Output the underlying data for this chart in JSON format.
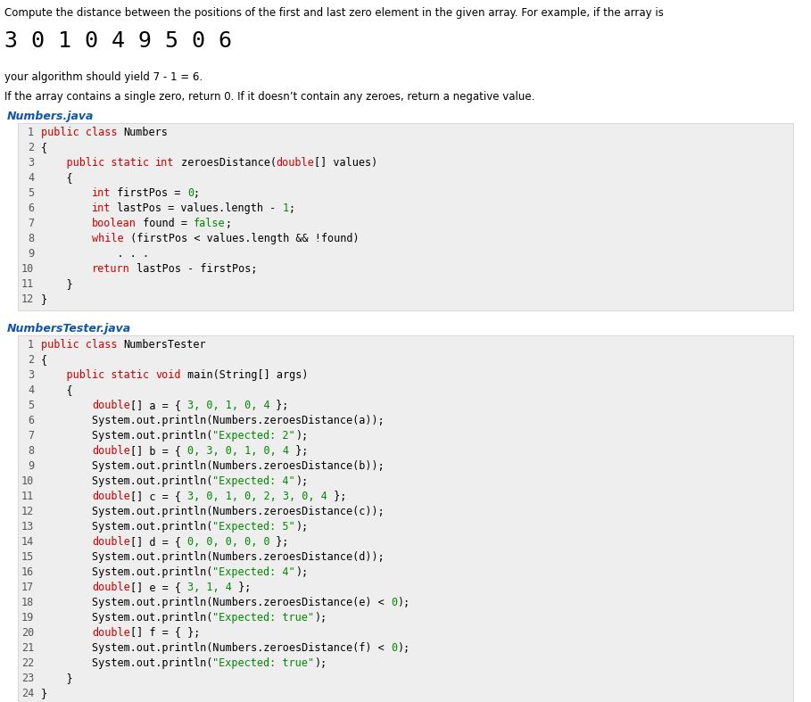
{
  "bg_color": "#ffffff",
  "intro_text": "Compute the distance between the positions of the first and last zero element in the given array. For example, if the array is",
  "array_display": "3 0 1 0 4 9 5 0 6",
  "algo_text": "your algorithm should yield 7 - 1 = 6.",
  "condition_text": "If the array contains a single zero, return 0. If it doesn’t contain any zeroes, return a negative value.",
  "file1_label": "Numbers.java",
  "file1_bg": "#eeeeee",
  "file1_label_color": "#1155aa",
  "file2_label": "NumbersTester.java",
  "file2_bg": "#eeeeee",
  "file2_label_color": "#1155aa",
  "keyword_color": "#cc0000",
  "number_color": "#008800",
  "string_color": "#008800",
  "default_color": "#000000",
  "num_color": "#555555",
  "numbers_lines": [
    {
      "num": "1",
      "tokens": [
        [
          "public class ",
          "#cc0000"
        ],
        [
          "Numbers",
          "#000000"
        ]
      ]
    },
    {
      "num": "2",
      "tokens": [
        [
          "{",
          "#000000"
        ]
      ]
    },
    {
      "num": "3",
      "tokens": [
        [
          "    public static ",
          "#cc0000"
        ],
        [
          "int",
          "#cc0000"
        ],
        [
          " zeroesDistance(",
          "#000000"
        ],
        [
          "double",
          "#cc0000"
        ],
        [
          "[] values)",
          "#000000"
        ]
      ]
    },
    {
      "num": "4",
      "tokens": [
        [
          "    {",
          "#000000"
        ]
      ]
    },
    {
      "num": "5",
      "tokens": [
        [
          "        ",
          "#000000"
        ],
        [
          "int",
          "#cc0000"
        ],
        [
          " firstPos = ",
          "#000000"
        ],
        [
          "0",
          "#008800"
        ],
        [
          ";",
          "#000000"
        ]
      ]
    },
    {
      "num": "6",
      "tokens": [
        [
          "        ",
          "#000000"
        ],
        [
          "int",
          "#cc0000"
        ],
        [
          " lastPos = values.length - ",
          "#000000"
        ],
        [
          "1",
          "#008800"
        ],
        [
          ";",
          "#000000"
        ]
      ]
    },
    {
      "num": "7",
      "tokens": [
        [
          "        ",
          "#000000"
        ],
        [
          "boolean",
          "#cc0000"
        ],
        [
          " found = ",
          "#000000"
        ],
        [
          "false",
          "#008800"
        ],
        [
          ";",
          "#000000"
        ]
      ]
    },
    {
      "num": "8",
      "tokens": [
        [
          "        ",
          "#000000"
        ],
        [
          "while",
          "#cc0000"
        ],
        [
          " (firstPos < values.length && !found)",
          "#000000"
        ]
      ]
    },
    {
      "num": "9",
      "tokens": [
        [
          "            . . .",
          "#000000"
        ]
      ]
    },
    {
      "num": "10",
      "tokens": [
        [
          "        ",
          "#000000"
        ],
        [
          "return",
          "#cc0000"
        ],
        [
          " lastPos - firstPos;",
          "#000000"
        ]
      ]
    },
    {
      "num": "11",
      "tokens": [
        [
          "    }",
          "#000000"
        ]
      ]
    },
    {
      "num": "12",
      "tokens": [
        [
          "}",
          "#000000"
        ]
      ]
    }
  ],
  "tester_lines": [
    {
      "num": "1",
      "tokens": [
        [
          "public class ",
          "#cc0000"
        ],
        [
          "NumbersTester",
          "#000000"
        ]
      ]
    },
    {
      "num": "2",
      "tokens": [
        [
          "{",
          "#000000"
        ]
      ]
    },
    {
      "num": "3",
      "tokens": [
        [
          "    public static ",
          "#cc0000"
        ],
        [
          "void",
          "#cc0000"
        ],
        [
          " main(String[] args)",
          "#000000"
        ]
      ]
    },
    {
      "num": "4",
      "tokens": [
        [
          "    {",
          "#000000"
        ]
      ]
    },
    {
      "num": "5",
      "tokens": [
        [
          "        ",
          "#000000"
        ],
        [
          "double",
          "#cc0000"
        ],
        [
          "[] a = { ",
          "#000000"
        ],
        [
          "3, 0, 1, 0, 4",
          "#008800"
        ],
        [
          " };",
          "#000000"
        ]
      ]
    },
    {
      "num": "6",
      "tokens": [
        [
          "        System.out.println(Numbers.zeroesDistance(a));",
          "#000000"
        ]
      ]
    },
    {
      "num": "7",
      "tokens": [
        [
          "        System.out.println(",
          "#000000"
        ],
        [
          "\"Expected: 2\"",
          "#008800"
        ],
        [
          ");",
          "#000000"
        ]
      ]
    },
    {
      "num": "8",
      "tokens": [
        [
          "        ",
          "#000000"
        ],
        [
          "double",
          "#cc0000"
        ],
        [
          "[] b = { ",
          "#000000"
        ],
        [
          "0, 3, 0, 1, 0, 4",
          "#008800"
        ],
        [
          " };",
          "#000000"
        ]
      ]
    },
    {
      "num": "9",
      "tokens": [
        [
          "        System.out.println(Numbers.zeroesDistance(b));",
          "#000000"
        ]
      ]
    },
    {
      "num": "10",
      "tokens": [
        [
          "        System.out.println(",
          "#000000"
        ],
        [
          "\"Expected: 4\"",
          "#008800"
        ],
        [
          ");",
          "#000000"
        ]
      ]
    },
    {
      "num": "11",
      "tokens": [
        [
          "        ",
          "#000000"
        ],
        [
          "double",
          "#cc0000"
        ],
        [
          "[] c = { ",
          "#000000"
        ],
        [
          "3, 0, 1, 0, 2, 3, 0, 4",
          "#008800"
        ],
        [
          " };",
          "#000000"
        ]
      ]
    },
    {
      "num": "12",
      "tokens": [
        [
          "        System.out.println(Numbers.zeroesDistance(c));",
          "#000000"
        ]
      ]
    },
    {
      "num": "13",
      "tokens": [
        [
          "        System.out.println(",
          "#000000"
        ],
        [
          "\"Expected: 5\"",
          "#008800"
        ],
        [
          ");",
          "#000000"
        ]
      ]
    },
    {
      "num": "14",
      "tokens": [
        [
          "        ",
          "#000000"
        ],
        [
          "double",
          "#cc0000"
        ],
        [
          "[] d = { ",
          "#000000"
        ],
        [
          "0, 0, 0, 0, 0",
          "#008800"
        ],
        [
          " };",
          "#000000"
        ]
      ]
    },
    {
      "num": "15",
      "tokens": [
        [
          "        System.out.println(Numbers.zeroesDistance(d));",
          "#000000"
        ]
      ]
    },
    {
      "num": "16",
      "tokens": [
        [
          "        System.out.println(",
          "#000000"
        ],
        [
          "\"Expected: 4\"",
          "#008800"
        ],
        [
          ");",
          "#000000"
        ]
      ]
    },
    {
      "num": "17",
      "tokens": [
        [
          "        ",
          "#000000"
        ],
        [
          "double",
          "#cc0000"
        ],
        [
          "[] e = { ",
          "#000000"
        ],
        [
          "3, 1, 4",
          "#008800"
        ],
        [
          " };",
          "#000000"
        ]
      ]
    },
    {
      "num": "18",
      "tokens": [
        [
          "        System.out.println(Numbers.zeroesDistance(e) < ",
          "#000000"
        ],
        [
          "0",
          "#008800"
        ],
        [
          ");",
          "#000000"
        ]
      ]
    },
    {
      "num": "19",
      "tokens": [
        [
          "        System.out.println(",
          "#000000"
        ],
        [
          "\"Expected: true\"",
          "#008800"
        ],
        [
          ");",
          "#000000"
        ]
      ]
    },
    {
      "num": "20",
      "tokens": [
        [
          "        ",
          "#000000"
        ],
        [
          "double",
          "#cc0000"
        ],
        [
          "[] f = { };",
          "#000000"
        ]
      ]
    },
    {
      "num": "21",
      "tokens": [
        [
          "        System.out.println(Numbers.zeroesDistance(f) < ",
          "#000000"
        ],
        [
          "0",
          "#008800"
        ],
        [
          ");",
          "#000000"
        ]
      ]
    },
    {
      "num": "22",
      "tokens": [
        [
          "        System.out.println(",
          "#000000"
        ],
        [
          "\"Expected: true\"",
          "#008800"
        ],
        [
          ");",
          "#000000"
        ]
      ]
    },
    {
      "num": "23",
      "tokens": [
        [
          "    }",
          "#000000"
        ]
      ]
    },
    {
      "num": "24",
      "tokens": [
        [
          "}",
          "#000000"
        ]
      ]
    }
  ]
}
